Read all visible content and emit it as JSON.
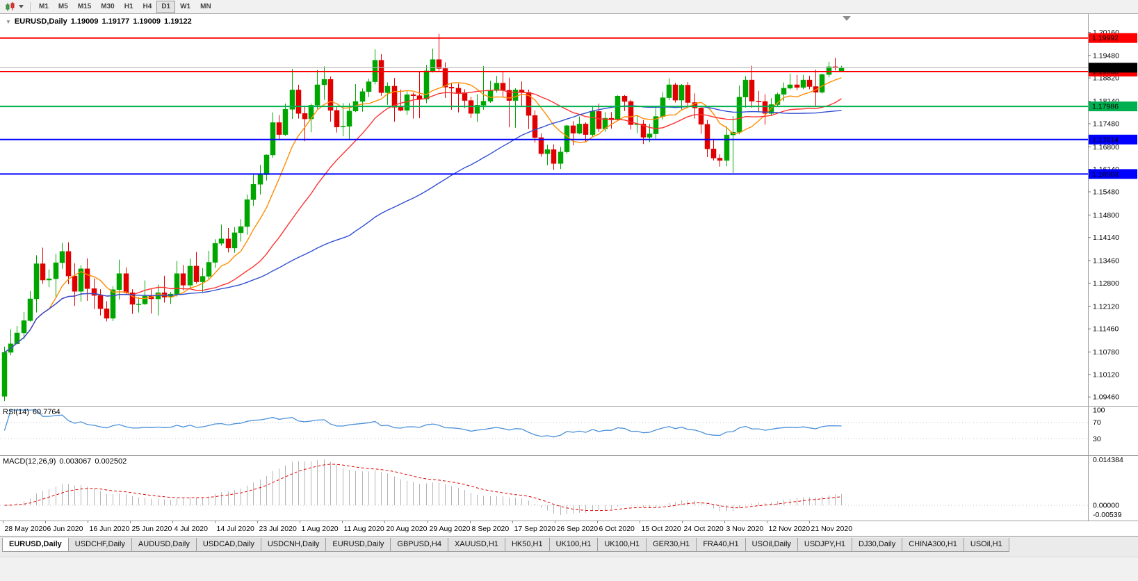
{
  "toolbar": {
    "timeframes": [
      "M1",
      "M5",
      "M15",
      "M30",
      "H1",
      "H4",
      "D1",
      "W1",
      "MN"
    ],
    "active_timeframe": "D1"
  },
  "chart": {
    "title": {
      "collapse_arrow": "▼",
      "symbol": "EURUSD,Daily",
      "open": "1.19009",
      "high": "1.19177",
      "low": "1.19009",
      "close": "1.19122"
    },
    "price_range": {
      "top": 1.207,
      "bottom": 1.092
    },
    "y_axis_labels": [
      "1.20160",
      "1.19480",
      "1.18820",
      "1.18140",
      "1.17480",
      "1.16800",
      "1.16140",
      "1.15480",
      "1.14800",
      "1.14140",
      "1.13460",
      "1.12800",
      "1.12120",
      "1.11460",
      "1.10780",
      "1.10120",
      "1.09460"
    ],
    "x_axis_labels": [
      "28 May 2020",
      "6 Jun 2020",
      "16 Jun 2020",
      "25 Jun 2020",
      "4 Jul 2020",
      "14 Jul 2020",
      "23 Jul 2020",
      "1 Aug 2020",
      "11 Aug 2020",
      "20 Aug 2020",
      "29 Aug 2020",
      "8 Sep 2020",
      "17 Sep 2020",
      "26 Sep 2020",
      "6 Oct 2020",
      "15 Oct 2020",
      "24 Oct 2020",
      "3 Nov 2020",
      "12 Nov 2020",
      "21 Nov 2020"
    ],
    "hlines": [
      {
        "price": 1.19992,
        "label": "1.19992",
        "color": "#ff0000",
        "width": 2
      },
      {
        "price": 1.19008,
        "label": "1.19008",
        "color": "#ff0000",
        "width": 2
      },
      {
        "price": 1.17986,
        "label": "1.17986",
        "color": "#00b050",
        "width": 2
      },
      {
        "price": 1.17014,
        "label": "1.17014",
        "color": "#0000ff",
        "width": 2
      },
      {
        "price": 1.16003,
        "label": "1.16003",
        "color": "#0000ff",
        "width": 2
      }
    ],
    "bid_tag": {
      "price": 1.19122,
      "label": "1.19122",
      "bg": "#000000",
      "line_color": "#b8b8b8"
    },
    "moving_averages": [
      {
        "name": "fast",
        "period": 8,
        "color": "#ff8c00"
      },
      {
        "name": "medium",
        "period": 21,
        "color": "#ff3030"
      },
      {
        "name": "slow",
        "period": 55,
        "color": "#2f4fd0"
      }
    ]
  },
  "chart_data": {
    "type": "candlestick",
    "title": "EURUSD,Daily",
    "symbol": "EURUSD",
    "timeframe": "Daily",
    "up_color": "#00a600",
    "down_color": "#e00000",
    "ohlc": [
      [
        1.0948,
        1.1094,
        1.0934,
        1.1077
      ],
      [
        1.1077,
        1.1145,
        1.1068,
        1.1102
      ],
      [
        1.1102,
        1.1154,
        1.1101,
        1.1134
      ],
      [
        1.1134,
        1.1195,
        1.1115,
        1.117
      ],
      [
        1.117,
        1.1257,
        1.1167,
        1.1234
      ],
      [
        1.1234,
        1.1362,
        1.1194,
        1.1337
      ],
      [
        1.1337,
        1.1384,
        1.1278,
        1.1289
      ],
      [
        1.1289,
        1.132,
        1.1268,
        1.1293
      ],
      [
        1.1293,
        1.1366,
        1.124,
        1.134
      ],
      [
        1.134,
        1.1398,
        1.1322,
        1.1373
      ],
      [
        1.1373,
        1.14,
        1.1277,
        1.1301
      ],
      [
        1.1301,
        1.1338,
        1.1213,
        1.1256
      ],
      [
        1.1256,
        1.1333,
        1.1226,
        1.1322
      ],
      [
        1.1322,
        1.1353,
        1.1228,
        1.1264
      ],
      [
        1.1264,
        1.1294,
        1.1204,
        1.1244
      ],
      [
        1.1244,
        1.1262,
        1.1185,
        1.1205
      ],
      [
        1.1205,
        1.1227,
        1.1168,
        1.1177
      ],
      [
        1.1177,
        1.1271,
        1.1169,
        1.1261
      ],
      [
        1.1261,
        1.1349,
        1.1232,
        1.1308
      ],
      [
        1.1308,
        1.1326,
        1.1246,
        1.1252
      ],
      [
        1.1252,
        1.1262,
        1.119,
        1.1218
      ],
      [
        1.1218,
        1.1239,
        1.1194,
        1.1219
      ],
      [
        1.1219,
        1.1288,
        1.1216,
        1.1242
      ],
      [
        1.1242,
        1.1262,
        1.1191,
        1.1234
      ],
      [
        1.1234,
        1.1276,
        1.1185,
        1.1252
      ],
      [
        1.1252,
        1.1302,
        1.1223,
        1.1239
      ],
      [
        1.1239,
        1.1254,
        1.1219,
        1.1248
      ],
      [
        1.1248,
        1.1345,
        1.1241,
        1.1308
      ],
      [
        1.1308,
        1.1333,
        1.1259,
        1.1274
      ],
      [
        1.1274,
        1.1352,
        1.1266,
        1.133
      ],
      [
        1.133,
        1.1371,
        1.1279,
        1.1284
      ],
      [
        1.1284,
        1.1324,
        1.1254,
        1.13
      ],
      [
        1.13,
        1.1375,
        1.1292,
        1.1341
      ],
      [
        1.1341,
        1.1409,
        1.1325,
        1.1397
      ],
      [
        1.1397,
        1.1452,
        1.139,
        1.141
      ],
      [
        1.141,
        1.1442,
        1.137,
        1.1383
      ],
      [
        1.1383,
        1.1444,
        1.1369,
        1.1428
      ],
      [
        1.1428,
        1.1468,
        1.1402,
        1.1446
      ],
      [
        1.1446,
        1.154,
        1.1422,
        1.1525
      ],
      [
        1.1525,
        1.1601,
        1.1507,
        1.157
      ],
      [
        1.157,
        1.1627,
        1.154,
        1.1598
      ],
      [
        1.1598,
        1.1658,
        1.1581,
        1.1656
      ],
      [
        1.1656,
        1.1781,
        1.1648,
        1.1751
      ],
      [
        1.1751,
        1.1773,
        1.17,
        1.1716
      ],
      [
        1.1716,
        1.1807,
        1.1712,
        1.179
      ],
      [
        1.179,
        1.1909,
        1.1762,
        1.1847
      ],
      [
        1.1847,
        1.1862,
        1.1763,
        1.1778
      ],
      [
        1.1778,
        1.1797,
        1.1696,
        1.1762
      ],
      [
        1.1762,
        1.1807,
        1.1723,
        1.1802
      ],
      [
        1.1802,
        1.1905,
        1.1791,
        1.1862
      ],
      [
        1.1862,
        1.1916,
        1.1818,
        1.1878
      ],
      [
        1.1878,
        1.1886,
        1.1754,
        1.1787
      ],
      [
        1.1787,
        1.1798,
        1.1722,
        1.1738
      ],
      [
        1.1738,
        1.1808,
        1.1711,
        1.174
      ],
      [
        1.174,
        1.1808,
        1.1699,
        1.1785
      ],
      [
        1.1785,
        1.1864,
        1.1782,
        1.1813
      ],
      [
        1.1813,
        1.1851,
        1.1783,
        1.1842
      ],
      [
        1.1842,
        1.188,
        1.1826,
        1.1871
      ],
      [
        1.1871,
        1.1966,
        1.1863,
        1.1934
      ],
      [
        1.1934,
        1.1952,
        1.183,
        1.1839
      ],
      [
        1.1839,
        1.1869,
        1.1803,
        1.1858
      ],
      [
        1.1858,
        1.1882,
        1.1754,
        1.1796
      ],
      [
        1.1796,
        1.1848,
        1.1784,
        1.1787
      ],
      [
        1.1787,
        1.1843,
        1.1774,
        1.1833
      ],
      [
        1.1833,
        1.1839,
        1.1763,
        1.183
      ],
      [
        1.183,
        1.19,
        1.1764,
        1.182
      ],
      [
        1.182,
        1.192,
        1.1808,
        1.1903
      ],
      [
        1.1903,
        1.1968,
        1.1898,
        1.1936
      ],
      [
        1.1936,
        1.2011,
        1.1901,
        1.191
      ],
      [
        1.191,
        1.1928,
        1.1823,
        1.1855
      ],
      [
        1.1855,
        1.1868,
        1.1789,
        1.1852
      ],
      [
        1.1852,
        1.1865,
        1.1781,
        1.1839
      ],
      [
        1.1839,
        1.1849,
        1.1794,
        1.1816
      ],
      [
        1.1816,
        1.1827,
        1.1765,
        1.1778
      ],
      [
        1.1778,
        1.1834,
        1.1753,
        1.1802
      ],
      [
        1.1802,
        1.1917,
        1.1789,
        1.1814
      ],
      [
        1.1814,
        1.1874,
        1.1809,
        1.1845
      ],
      [
        1.1845,
        1.1888,
        1.1839,
        1.1867
      ],
      [
        1.1867,
        1.19,
        1.1827,
        1.1846
      ],
      [
        1.1846,
        1.1883,
        1.1737,
        1.1816
      ],
      [
        1.1816,
        1.1852,
        1.1736,
        1.1847
      ],
      [
        1.1847,
        1.1872,
        1.18,
        1.184
      ],
      [
        1.184,
        1.1848,
        1.1732,
        1.1772
      ],
      [
        1.1772,
        1.1787,
        1.1692,
        1.1707
      ],
      [
        1.1707,
        1.1719,
        1.1651,
        1.166
      ],
      [
        1.166,
        1.1686,
        1.1626,
        1.1672
      ],
      [
        1.1672,
        1.1687,
        1.1612,
        1.1631
      ],
      [
        1.1631,
        1.168,
        1.1615,
        1.1665
      ],
      [
        1.1665,
        1.1745,
        1.166,
        1.1742
      ],
      [
        1.1742,
        1.1755,
        1.1684,
        1.172
      ],
      [
        1.172,
        1.1769,
        1.1717,
        1.1747
      ],
      [
        1.1747,
        1.1752,
        1.1695,
        1.1716
      ],
      [
        1.1716,
        1.1798,
        1.1708,
        1.1784
      ],
      [
        1.1784,
        1.1807,
        1.1724,
        1.1733
      ],
      [
        1.1733,
        1.1782,
        1.1724,
        1.1764
      ],
      [
        1.1764,
        1.1782,
        1.1733,
        1.1761
      ],
      [
        1.1761,
        1.1831,
        1.1758,
        1.1829
      ],
      [
        1.1829,
        1.1832,
        1.1785,
        1.1813
      ],
      [
        1.1813,
        1.1818,
        1.1731,
        1.1745
      ],
      [
        1.1745,
        1.1772,
        1.172,
        1.1747
      ],
      [
        1.1747,
        1.1758,
        1.1688,
        1.1708
      ],
      [
        1.1708,
        1.1747,
        1.1694,
        1.1718
      ],
      [
        1.1718,
        1.1794,
        1.1704,
        1.1769
      ],
      [
        1.1769,
        1.184,
        1.176,
        1.1824
      ],
      [
        1.1824,
        1.1881,
        1.1817,
        1.1862
      ],
      [
        1.1862,
        1.1868,
        1.181,
        1.1817
      ],
      [
        1.1817,
        1.1864,
        1.1787,
        1.1861
      ],
      [
        1.1861,
        1.187,
        1.18,
        1.181
      ],
      [
        1.181,
        1.1837,
        1.1763,
        1.1794
      ],
      [
        1.1794,
        1.18,
        1.1718,
        1.1746
      ],
      [
        1.1746,
        1.1759,
        1.165,
        1.1674
      ],
      [
        1.1674,
        1.1704,
        1.164,
        1.1647
      ],
      [
        1.1647,
        1.1658,
        1.1622,
        1.164
      ],
      [
        1.164,
        1.174,
        1.1623,
        1.1715
      ],
      [
        1.1715,
        1.177,
        1.1603,
        1.1723
      ],
      [
        1.1723,
        1.186,
        1.1717,
        1.1826
      ],
      [
        1.1826,
        1.1887,
        1.1795,
        1.1876
      ],
      [
        1.1876,
        1.1918,
        1.1795,
        1.1814
      ],
      [
        1.1814,
        1.1844,
        1.1781,
        1.1813
      ],
      [
        1.1813,
        1.1834,
        1.1745,
        1.1778
      ],
      [
        1.1778,
        1.1823,
        1.1771,
        1.1804
      ],
      [
        1.1804,
        1.1839,
        1.1799,
        1.1834
      ],
      [
        1.1834,
        1.1869,
        1.1814,
        1.1852
      ],
      [
        1.1852,
        1.1894,
        1.1848,
        1.1862
      ],
      [
        1.1862,
        1.1891,
        1.1846,
        1.1854
      ],
      [
        1.1854,
        1.1891,
        1.1849,
        1.1876
      ],
      [
        1.1876,
        1.1888,
        1.1849,
        1.1857
      ],
      [
        1.1857,
        1.1906,
        1.18,
        1.184
      ],
      [
        1.184,
        1.1895,
        1.1836,
        1.1892
      ],
      [
        1.1892,
        1.193,
        1.1884,
        1.1915
      ],
      [
        1.1915,
        1.1941,
        1.1904,
        1.1914
      ],
      [
        1.19009,
        1.19177,
        1.19009,
        1.19122
      ]
    ]
  },
  "rsi_panel": {
    "title": "RSI(14)",
    "value": "60.7764",
    "period": 14,
    "line_color": "#4a90d9",
    "levels": [
      {
        "value": 100,
        "label": "100",
        "line": false
      },
      {
        "value": 70,
        "label": "70",
        "line": true
      },
      {
        "value": 30,
        "label": "30",
        "line": true
      }
    ]
  },
  "macd_panel": {
    "title": "MACD(12,26,9)",
    "main_value": "0.003067",
    "signal_value": "0.002502",
    "fast": 12,
    "slow": 26,
    "signal": 9,
    "histogram_color": "#b4b4b4",
    "signal_color": "#e00000",
    "axis_labels": {
      "top": "0.014384",
      "zero": "0.00000",
      "bottom": "-0.00539"
    }
  },
  "tabs": [
    {
      "label": "EURUSD,Daily",
      "active": true
    },
    {
      "label": "USDCHF,Daily"
    },
    {
      "label": "AUDUSD,Daily"
    },
    {
      "label": "USDCAD,Daily"
    },
    {
      "label": "USDCNH,Daily"
    },
    {
      "label": "EURUSD,Daily"
    },
    {
      "label": "GBPUSD,H4"
    },
    {
      "label": "XAUUSD,H1"
    },
    {
      "label": "HK50,H1"
    },
    {
      "label": "UK100,H1"
    },
    {
      "label": "UK100,H1"
    },
    {
      "label": "GER30,H1"
    },
    {
      "label": "FRA40,H1"
    },
    {
      "label": "USOil,Daily"
    },
    {
      "label": "USDJPY,H1"
    },
    {
      "label": "DJ30,Daily"
    },
    {
      "label": "CHINA300,H1"
    },
    {
      "label": "USOil,H1"
    }
  ]
}
